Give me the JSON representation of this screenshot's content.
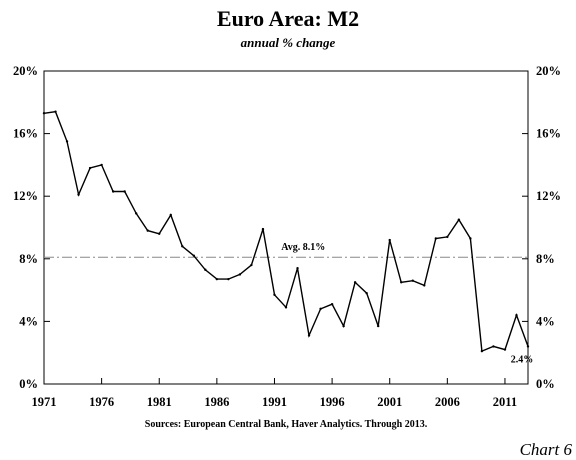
{
  "chart_data": {
    "type": "line",
    "title": "Euro Area: M2",
    "subtitle": "annual % change",
    "source": "Sources: European Central Bank, Haver Analytics. Through 2013.",
    "chart_number": "Chart 6",
    "x": [
      1971,
      1972,
      1973,
      1974,
      1975,
      1976,
      1977,
      1978,
      1979,
      1980,
      1981,
      1982,
      1983,
      1984,
      1985,
      1986,
      1987,
      1988,
      1989,
      1990,
      1991,
      1992,
      1993,
      1994,
      1995,
      1996,
      1997,
      1998,
      1999,
      2000,
      2001,
      2002,
      2003,
      2004,
      2005,
      2006,
      2007,
      2008,
      2009,
      2010,
      2011,
      2012,
      2013
    ],
    "series": [
      {
        "values": [
          17.3,
          17.4,
          15.5,
          12.1,
          13.8,
          14.0,
          12.3,
          12.3,
          10.9,
          9.8,
          9.6,
          10.8,
          8.8,
          8.2,
          7.3,
          6.7,
          6.7,
          7.0,
          7.6,
          9.9,
          5.7,
          4.9,
          7.4,
          3.1,
          4.8,
          5.1,
          3.7,
          6.5,
          5.8,
          3.7,
          9.2,
          6.5,
          6.6,
          6.3,
          9.3,
          9.4,
          10.5,
          9.3,
          2.1,
          2.4,
          2.2,
          4.4,
          2.4
        ]
      }
    ],
    "average": {
      "value": 8.1,
      "label": "Avg. 8.1%"
    },
    "last_label": "2.4%",
    "xlim": [
      1971,
      2013
    ],
    "ylim": [
      0,
      20
    ],
    "x_ticks": [
      1971,
      1976,
      1981,
      1986,
      1991,
      1996,
      2001,
      2006,
      2011
    ],
    "x_tick_labels": [
      "1971",
      "1976",
      "1981",
      "1986",
      "1991",
      "1996",
      "2001",
      "2006",
      "2011"
    ],
    "y_ticks": [
      0,
      4,
      8,
      12,
      16,
      20
    ],
    "y_tick_labels": [
      "0%",
      "4%",
      "8%",
      "12%",
      "16%",
      "20%"
    ],
    "line_color": "#000000",
    "avg_line_color": "#888888",
    "grid": false
  }
}
